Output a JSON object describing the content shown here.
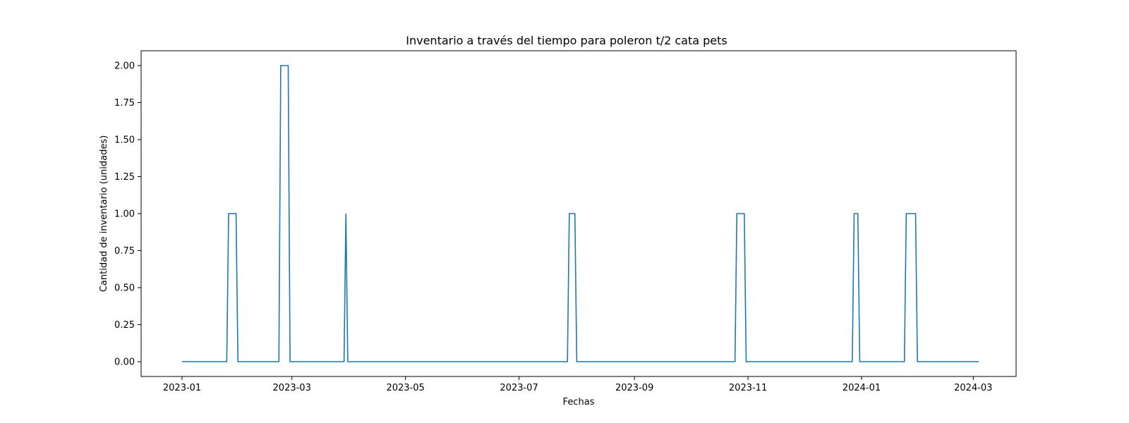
{
  "chart_data": {
    "type": "line",
    "title": "Inventario a través del tiempo para poleron t/2 cata pets",
    "xlabel": "Fechas",
    "ylabel": "Cantidad de inventario (unidades)",
    "x_axis_type": "date",
    "xlim": [
      "2022-12-10",
      "2024-03-24"
    ],
    "ylim": [
      -0.1,
      2.1
    ],
    "x_ticks": [
      "2023-01",
      "2023-03",
      "2023-05",
      "2023-07",
      "2023-09",
      "2023-11",
      "2024-01",
      "2024-03"
    ],
    "y_ticks": [
      "0.00",
      "0.25",
      "0.50",
      "0.75",
      "1.00",
      "1.25",
      "1.50",
      "1.75",
      "2.00"
    ],
    "grid": false,
    "color": "#1f77b4",
    "series": [
      {
        "points": [
          [
            "2023-01-01",
            0
          ],
          [
            "2023-01-25",
            0
          ],
          [
            "2023-01-26",
            1
          ],
          [
            "2023-01-30",
            1
          ],
          [
            "2023-01-31",
            0
          ],
          [
            "2023-02-22",
            0
          ],
          [
            "2023-02-23",
            2
          ],
          [
            "2023-02-27",
            2
          ],
          [
            "2023-02-28",
            0
          ],
          [
            "2023-03-29",
            0
          ],
          [
            "2023-03-30",
            1
          ],
          [
            "2023-03-31",
            0
          ],
          [
            "2023-07-27",
            0
          ],
          [
            "2023-07-28",
            1
          ],
          [
            "2023-07-31",
            1
          ],
          [
            "2023-08-01",
            0
          ],
          [
            "2023-10-25",
            0
          ],
          [
            "2023-10-26",
            1
          ],
          [
            "2023-10-30",
            1
          ],
          [
            "2023-10-31",
            0
          ],
          [
            "2023-12-27",
            0
          ],
          [
            "2023-12-28",
            1
          ],
          [
            "2023-12-30",
            1
          ],
          [
            "2023-12-31",
            0
          ],
          [
            "2024-01-24",
            0
          ],
          [
            "2024-01-25",
            1
          ],
          [
            "2024-01-30",
            1
          ],
          [
            "2024-01-31",
            0
          ],
          [
            "2024-03-04",
            0
          ]
        ]
      }
    ]
  }
}
